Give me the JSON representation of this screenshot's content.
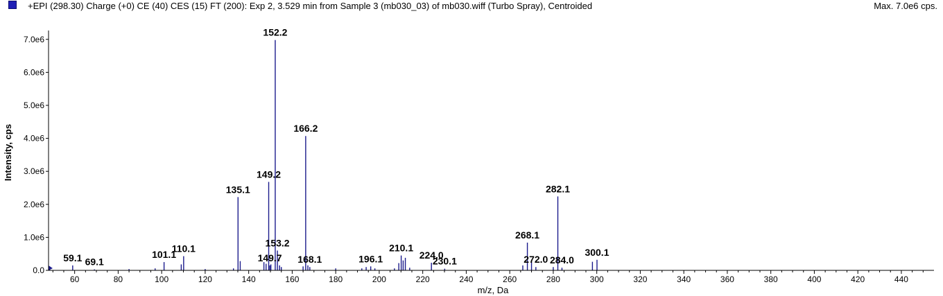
{
  "header": {
    "title": "+EPI (298.30) Charge (+0) CE (40) CES (15) FT (200): Exp 2, 3.529 min from Sample 3 (mb030_03) of mb030.wiff (Turbo Spray), Centroided",
    "max_label": "Max. 7.0e6 cps."
  },
  "colors": {
    "series": "#1a1a8c",
    "swatch": "#1f1fb5",
    "axis": "#000000"
  },
  "chart_data": {
    "type": "bar",
    "xlabel": "m/z, Da",
    "ylabel": "Intensity, cps",
    "xlim": [
      48,
      455
    ],
    "ylim": [
      0,
      7100000.0
    ],
    "x_ticks": [
      60,
      80,
      100,
      120,
      140,
      160,
      180,
      200,
      220,
      240,
      260,
      280,
      300,
      320,
      340,
      360,
      380,
      400,
      420,
      440
    ],
    "y_ticks": [
      0,
      1000000,
      2000000,
      3000000,
      4000000,
      5000000,
      6000000,
      7000000
    ],
    "y_tick_labels": [
      "0.0",
      "1.0e6",
      "2.0e6",
      "3.0e6",
      "4.0e6",
      "5.0e6",
      "6.0e6",
      "7.0e6"
    ],
    "peaks": [
      {
        "mz": 48.5,
        "intensity": 120000
      },
      {
        "mz": 59.1,
        "intensity": 150000
      },
      {
        "mz": 69.1,
        "intensity": 30000
      },
      {
        "mz": 85.0,
        "intensity": 40000
      },
      {
        "mz": 97.0,
        "intensity": 60000
      },
      {
        "mz": 101.1,
        "intensity": 250000
      },
      {
        "mz": 109.0,
        "intensity": 180000
      },
      {
        "mz": 110.1,
        "intensity": 430000
      },
      {
        "mz": 120.0,
        "intensity": 40000
      },
      {
        "mz": 133.0,
        "intensity": 60000
      },
      {
        "mz": 135.1,
        "intensity": 2220000
      },
      {
        "mz": 136.1,
        "intensity": 280000
      },
      {
        "mz": 147.0,
        "intensity": 250000
      },
      {
        "mz": 148.0,
        "intensity": 200000
      },
      {
        "mz": 149.2,
        "intensity": 2680000
      },
      {
        "mz": 149.7,
        "intensity": 150000
      },
      {
        "mz": 150.2,
        "intensity": 180000
      },
      {
        "mz": 152.2,
        "intensity": 6980000
      },
      {
        "mz": 153.2,
        "intensity": 600000
      },
      {
        "mz": 154.2,
        "intensity": 150000
      },
      {
        "mz": 155.0,
        "intensity": 100000
      },
      {
        "mz": 165.0,
        "intensity": 120000
      },
      {
        "mz": 166.2,
        "intensity": 4070000
      },
      {
        "mz": 167.2,
        "intensity": 150000
      },
      {
        "mz": 168.1,
        "intensity": 100000
      },
      {
        "mz": 180.0,
        "intensity": 60000
      },
      {
        "mz": 192.0,
        "intensity": 60000
      },
      {
        "mz": 194.0,
        "intensity": 100000
      },
      {
        "mz": 196.1,
        "intensity": 120000
      },
      {
        "mz": 198.0,
        "intensity": 60000
      },
      {
        "mz": 207.0,
        "intensity": 60000
      },
      {
        "mz": 209.0,
        "intensity": 220000
      },
      {
        "mz": 210.1,
        "intensity": 450000
      },
      {
        "mz": 211.0,
        "intensity": 300000
      },
      {
        "mz": 212.0,
        "intensity": 380000
      },
      {
        "mz": 214.0,
        "intensity": 80000
      },
      {
        "mz": 224.0,
        "intensity": 230000
      },
      {
        "mz": 230.1,
        "intensity": 50000
      },
      {
        "mz": 266.0,
        "intensity": 150000
      },
      {
        "mz": 268.1,
        "intensity": 840000
      },
      {
        "mz": 270.0,
        "intensity": 250000
      },
      {
        "mz": 272.0,
        "intensity": 100000
      },
      {
        "mz": 280.0,
        "intensity": 100000
      },
      {
        "mz": 282.1,
        "intensity": 2240000
      },
      {
        "mz": 284.0,
        "intensity": 80000
      },
      {
        "mz": 298.0,
        "intensity": 260000
      },
      {
        "mz": 300.1,
        "intensity": 320000
      }
    ],
    "annotations": [
      {
        "text": "59.1",
        "mz": 59.1,
        "intensity": 150000
      },
      {
        "text": "69.1",
        "mz": 69.1,
        "intensity": 30000
      },
      {
        "text": "101.1",
        "mz": 101.1,
        "intensity": 250000
      },
      {
        "text": "110.1",
        "mz": 110.1,
        "intensity": 430000
      },
      {
        "text": "135.1",
        "mz": 135.1,
        "intensity": 2220000
      },
      {
        "text": "149.2",
        "mz": 149.2,
        "intensity": 2680000
      },
      {
        "text": "149.7",
        "mz": 149.7,
        "intensity": 150000
      },
      {
        "text": "152.2",
        "mz": 152.2,
        "intensity": 6980000
      },
      {
        "text": "153.2",
        "mz": 153.2,
        "intensity": 600000
      },
      {
        "text": "166.2",
        "mz": 166.2,
        "intensity": 4070000
      },
      {
        "text": "168.1",
        "mz": 168.1,
        "intensity": 100000
      },
      {
        "text": "196.1",
        "mz": 196.1,
        "intensity": 120000
      },
      {
        "text": "210.1",
        "mz": 210.1,
        "intensity": 450000
      },
      {
        "text": "224.0",
        "mz": 224.0,
        "intensity": 230000
      },
      {
        "text": "230.1",
        "mz": 230.1,
        "intensity": 50000
      },
      {
        "text": "268.1",
        "mz": 268.1,
        "intensity": 840000
      },
      {
        "text": "272.0",
        "mz": 272.0,
        "intensity": 100000
      },
      {
        "text": "282.1",
        "mz": 282.1,
        "intensity": 2240000
      },
      {
        "text": "284.0",
        "mz": 284.0,
        "intensity": 80000
      },
      {
        "text": "300.1",
        "mz": 300.1,
        "intensity": 320000
      }
    ],
    "grid": false,
    "legend": "none"
  }
}
